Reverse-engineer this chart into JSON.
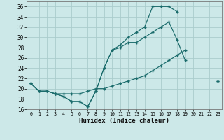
{
  "xlabel": "Humidex (Indice chaleur)",
  "background_color": "#cce8e8",
  "grid_color": "#aacccc",
  "line_color": "#1a6b6b",
  "xlim": [
    -0.5,
    23.5
  ],
  "ylim": [
    16,
    37
  ],
  "xticks": [
    0,
    1,
    2,
    3,
    4,
    5,
    6,
    7,
    8,
    9,
    10,
    11,
    12,
    13,
    14,
    15,
    16,
    17,
    18,
    19,
    20,
    21,
    22,
    23
  ],
  "yticks": [
    16,
    18,
    20,
    22,
    24,
    26,
    28,
    30,
    32,
    34,
    36
  ],
  "line1_x": [
    0,
    1,
    2,
    3,
    4,
    5,
    6,
    7,
    8,
    9,
    10,
    11,
    12,
    13,
    14,
    15,
    16,
    17,
    18
  ],
  "line1_y": [
    21,
    19.5,
    19.5,
    19,
    18.5,
    17.5,
    17.5,
    16.5,
    19.5,
    24,
    27.5,
    28.5,
    30,
    31,
    32,
    36,
    36,
    36,
    35
  ],
  "line2_x": [
    0,
    1,
    2,
    3,
    4,
    5,
    6,
    7,
    8,
    9,
    10,
    11,
    12,
    13,
    14,
    15,
    16,
    17,
    18,
    19,
    20,
    21,
    22,
    23
  ],
  "line2_y": [
    21,
    19.5,
    19.5,
    19,
    18.5,
    17.5,
    17.5,
    16.5,
    19.5,
    24,
    27.5,
    28,
    29,
    29,
    30,
    31,
    32,
    33,
    29.5,
    25.5,
    null,
    null,
    null,
    21.5
  ],
  "line3_x": [
    0,
    1,
    2,
    3,
    4,
    5,
    6,
    7,
    8,
    9,
    10,
    11,
    12,
    13,
    14,
    15,
    16,
    17,
    18,
    19,
    20,
    21,
    22,
    23
  ],
  "line3_y": [
    21,
    19.5,
    19.5,
    19,
    19,
    19,
    19,
    19.5,
    20,
    20,
    20.5,
    21,
    21.5,
    22,
    22.5,
    23.5,
    24.5,
    25.5,
    26.5,
    27.5,
    null,
    null,
    null,
    21.5
  ]
}
